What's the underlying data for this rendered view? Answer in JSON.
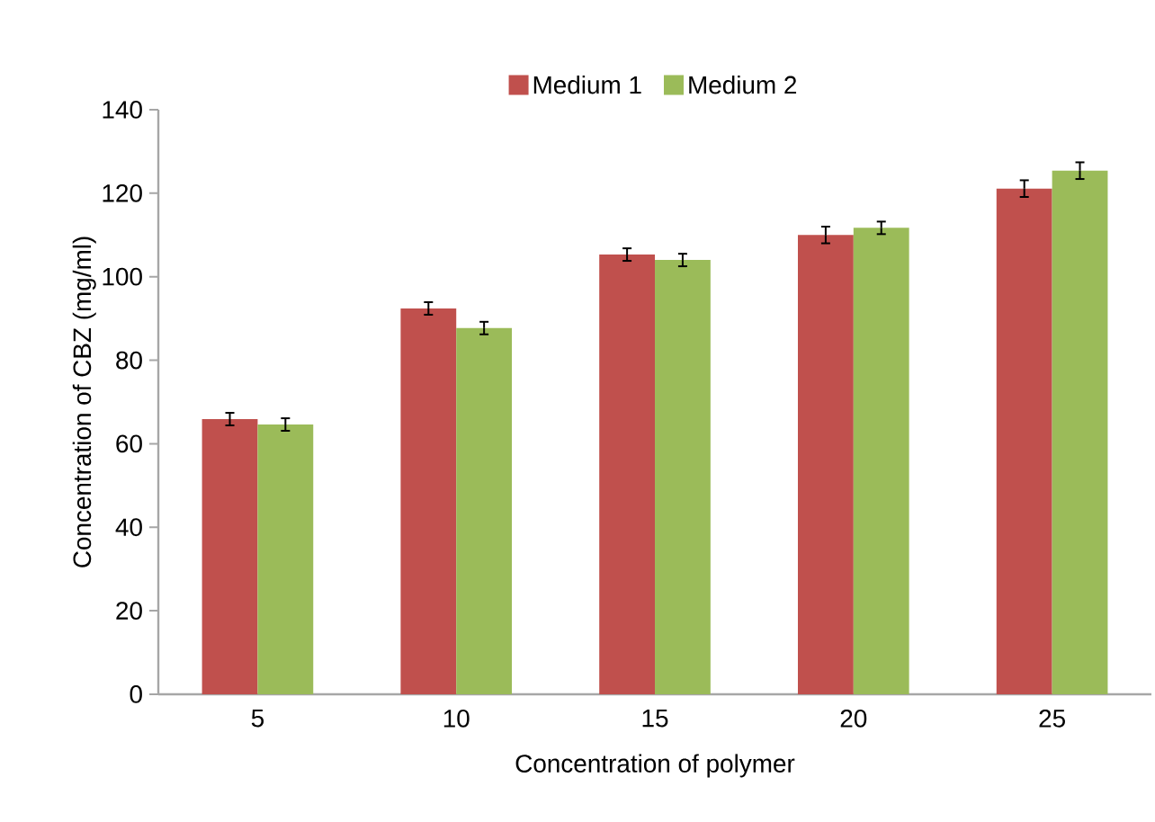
{
  "chart_data": {
    "type": "bar",
    "xlabel": "Concentration of polymer",
    "ylabel": "Concentration of CBZ (mg/ml)",
    "categories": [
      "5",
      "10",
      "15",
      "20",
      "25"
    ],
    "series": [
      {
        "name": "Medium 1",
        "color": "#c0504d",
        "values": [
          65.9,
          92.4,
          105.3,
          110,
          121.1
        ],
        "errors": [
          1.5,
          1.5,
          1.5,
          2,
          2
        ]
      },
      {
        "name": "Medium 2",
        "color": "#9bbb59",
        "values": [
          64.6,
          87.7,
          104,
          111.7,
          125.4
        ],
        "errors": [
          1.5,
          1.5,
          1.5,
          1.5,
          2
        ]
      }
    ],
    "ylim": [
      0,
      140
    ],
    "yticks": [
      0,
      20,
      40,
      60,
      80,
      100,
      120,
      140
    ],
    "grid": false,
    "legend": "top"
  }
}
